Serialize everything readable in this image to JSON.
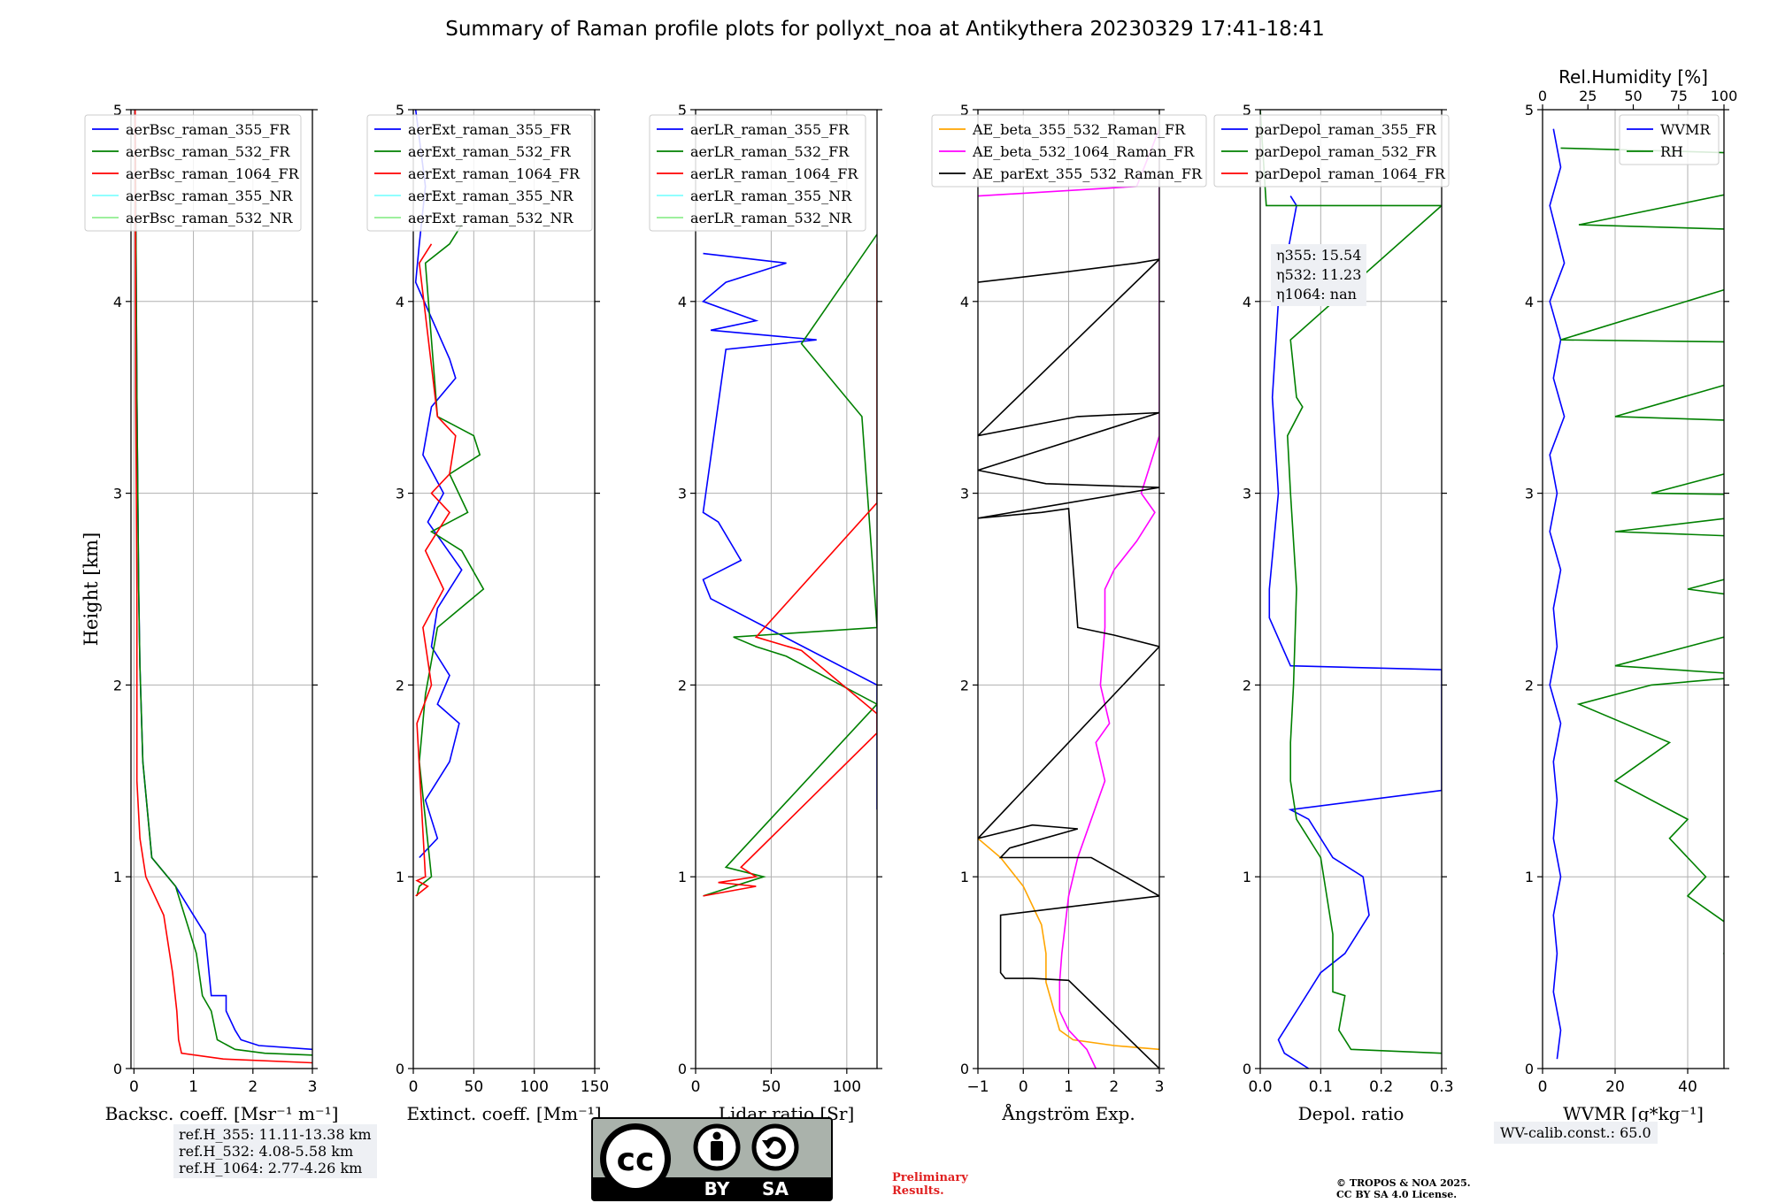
{
  "title": "Summary of Raman profile plots for pollyxt_noa at Antikythera 20230329 17:41-18:41",
  "ylabel": "Height [km]",
  "ref_heights": [
    "ref.H_355: 11.11-13.38 km",
    "ref.H_532: 4.08-5.58 km",
    "ref.H_1064: 2.77-4.26 km"
  ],
  "eta_values": [
    "η355: 15.54",
    "η532: 11.23",
    "η1064: nan"
  ],
  "wv_calib": "WV-calib.const.: 65.0",
  "license": {
    "cc": "cc",
    "by": "BY",
    "sa": "SA"
  },
  "preliminary": [
    "Preliminary",
    "Results."
  ],
  "copyright": [
    "© TROPOS & NOA 2025.",
    "CC BY SA 4.0 License."
  ],
  "colors": {
    "blue": "#0000ff",
    "green": "#008000",
    "red": "#ff0000",
    "cyan": "#80ffff",
    "lightgreen": "#90ee90",
    "orange": "#ffa500",
    "magenta": "#ff00ff",
    "black": "#000000"
  },
  "chart_data": [
    {
      "type": "line",
      "xlabel": "Backsc. coeff. [Msr⁻¹ m⁻¹]",
      "ylabel": "Height [km]",
      "xlim": [
        -0.05,
        3
      ],
      "ylim": [
        0,
        5
      ],
      "xticks": [
        "0",
        "1",
        "2",
        "3"
      ],
      "yticks": [
        "0",
        "1",
        "2",
        "3",
        "4",
        "5"
      ],
      "legend": "top-left",
      "series": [
        {
          "name": "aerBsc_raman_355_FR",
          "color": "#0000ff",
          "x": [
            0.02,
            0.03,
            0.05,
            0.08,
            0.1,
            0.15,
            0.3,
            0.7,
            1.2,
            1.3,
            1.55,
            1.55,
            1.7,
            1.8,
            2.1,
            3.0
          ],
          "y": [
            5,
            4.5,
            3.5,
            2.5,
            2.1,
            1.6,
            1.1,
            0.95,
            0.7,
            0.38,
            0.38,
            0.3,
            0.2,
            0.15,
            0.12,
            0.1
          ]
        },
        {
          "name": "aerBsc_raman_532_FR",
          "color": "#008000",
          "x": [
            0.02,
            0.03,
            0.05,
            0.08,
            0.1,
            0.15,
            0.3,
            0.7,
            1.05,
            1.15,
            1.3,
            1.4,
            1.7,
            2.2,
            3.0
          ],
          "y": [
            5,
            4.5,
            3.5,
            2.5,
            2.1,
            1.6,
            1.1,
            0.95,
            0.6,
            0.38,
            0.3,
            0.15,
            0.1,
            0.08,
            0.07
          ]
        },
        {
          "name": "aerBsc_raman_1064_FR",
          "color": "#ff0000",
          "x": [
            0.02,
            0.03,
            0.05,
            0.05,
            0.1,
            0.2,
            0.5,
            0.65,
            0.72,
            0.75,
            0.8,
            1.5,
            3.0
          ],
          "y": [
            5,
            3.5,
            2.5,
            1.5,
            1.2,
            1.0,
            0.8,
            0.5,
            0.3,
            0.15,
            0.08,
            0.05,
            0.03
          ]
        },
        {
          "name": "aerBsc_raman_355_NR",
          "color": "#80ffff",
          "x": [],
          "y": []
        },
        {
          "name": "aerBsc_raman_532_NR",
          "color": "#90ee90",
          "x": [],
          "y": []
        }
      ]
    },
    {
      "type": "line",
      "xlabel": "Extinct. coeff. [Mm⁻¹]",
      "xlim": [
        0,
        150
      ],
      "ylim": [
        0,
        5
      ],
      "xticks": [
        "0",
        "50",
        "100",
        "150"
      ],
      "yticks": [
        "0",
        "1",
        "2",
        "3",
        "4",
        "5"
      ],
      "legend": "top-left",
      "series": [
        {
          "name": "aerExt_raman_355_FR",
          "color": "#0000ff",
          "x": [
            2,
            10,
            5,
            2,
            30,
            35,
            15,
            8,
            25,
            12,
            40,
            20,
            15,
            30,
            20,
            38,
            30,
            10,
            20,
            5
          ],
          "y": [
            5,
            4.6,
            4.3,
            4.1,
            3.7,
            3.6,
            3.45,
            3.2,
            3.0,
            2.85,
            2.6,
            2.4,
            2.2,
            2.05,
            1.9,
            1.8,
            1.6,
            1.4,
            1.2,
            1.1
          ]
        },
        {
          "name": "aerExt_raman_532_FR",
          "color": "#008000",
          "x": [
            40,
            30,
            10,
            20,
            50,
            55,
            30,
            45,
            15,
            40,
            58,
            20,
            10,
            5,
            15,
            5,
            3
          ],
          "y": [
            4.4,
            4.3,
            4.2,
            3.4,
            3.3,
            3.2,
            3.1,
            2.9,
            2.8,
            2.7,
            2.5,
            2.3,
            1.95,
            1.6,
            1.0,
            0.95,
            0.9
          ]
        },
        {
          "name": "aerExt_raman_1064_FR",
          "color": "#ff0000",
          "x": [
            15,
            5,
            20,
            35,
            30,
            15,
            30,
            10,
            25,
            8,
            15,
            3,
            10,
            3,
            12,
            2
          ],
          "y": [
            4.3,
            4.2,
            3.4,
            3.3,
            3.1,
            3.0,
            2.9,
            2.7,
            2.5,
            2.3,
            2.0,
            1.8,
            1.0,
            0.98,
            0.95,
            0.9
          ]
        },
        {
          "name": "aerExt_raman_355_NR",
          "color": "#80ffff",
          "x": [],
          "y": []
        },
        {
          "name": "aerExt_raman_532_NR",
          "color": "#90ee90",
          "x": [],
          "y": []
        }
      ]
    },
    {
      "type": "line",
      "xlabel": "Lidar ratio [Sr]",
      "xlim": [
        0,
        120
      ],
      "ylim": [
        0,
        5
      ],
      "xticks": [
        "0",
        "50",
        "100"
      ],
      "yticks": [
        "0",
        "1",
        "2",
        "3",
        "4",
        "5"
      ],
      "legend": "top-left",
      "series": [
        {
          "name": "aerLR_raman_355_FR",
          "color": "#0000ff",
          "x": [
            5,
            60,
            20,
            5,
            40,
            10,
            80,
            20,
            5,
            15,
            30,
            5,
            10,
            120,
            120,
            120,
            120
          ],
          "y": [
            4.25,
            4.2,
            4.1,
            4.0,
            3.9,
            3.85,
            3.8,
            3.75,
            2.9,
            2.85,
            2.65,
            2.55,
            2.45,
            2.0,
            1.65,
            1.43,
            1.35
          ]
        },
        {
          "name": "aerLR_raman_532_FR",
          "color": "#008000",
          "x": [
            120,
            70,
            110,
            120,
            25,
            40,
            60,
            120,
            20,
            45,
            5
          ],
          "y": [
            4.35,
            3.78,
            3.4,
            2.3,
            2.25,
            2.2,
            2.15,
            1.9,
            1.05,
            1.0,
            0.9
          ]
        },
        {
          "name": "aerLR_raman_1064_FR",
          "color": "#ff0000",
          "x": [
            120,
            120,
            120,
            120,
            120,
            120,
            40,
            70,
            120,
            120,
            30,
            40,
            15,
            40,
            5
          ],
          "y": [
            4.3,
            4.2,
            3.78,
            3.43,
            3.07,
            2.95,
            2.25,
            2.18,
            1.85,
            1.75,
            1.05,
            1.0,
            0.97,
            0.95,
            0.9
          ]
        },
        {
          "name": "aerLR_raman_355_NR",
          "color": "#80ffff",
          "x": [],
          "y": []
        },
        {
          "name": "aerLR_raman_532_NR",
          "color": "#90ee90",
          "x": [],
          "y": []
        }
      ]
    },
    {
      "type": "line",
      "xlabel": "Ångström Exp.",
      "xlim": [
        -1,
        3
      ],
      "ylim": [
        0,
        5
      ],
      "xticks": [
        "−1",
        "0",
        "1",
        "2",
        "3"
      ],
      "yticks": [
        "0",
        "1",
        "2",
        "3",
        "4",
        "5"
      ],
      "legend": "top-left",
      "series": [
        {
          "name": "AE_beta_355_532_Raman_FR",
          "color": "#ffa500",
          "x": [
            -1.0,
            -0.5,
            0.0,
            0.4,
            0.5,
            0.5,
            0.8,
            1.1,
            2.0,
            3.0
          ],
          "y": [
            1.2,
            1.1,
            0.95,
            0.75,
            0.6,
            0.45,
            0.2,
            0.15,
            0.12,
            0.1
          ]
        },
        {
          "name": "AE_beta_532_1064_Raman_FR",
          "color": "#ff00ff",
          "x": [
            -1.0,
            2.5,
            3.0,
            3.0,
            2.6,
            2.9,
            2.5,
            2.0,
            1.8,
            1.8,
            1.7,
            1.9,
            1.6,
            1.8,
            1.5,
            1.2,
            1.0,
            0.85,
            0.8,
            0.8,
            1.0,
            1.4,
            1.6
          ],
          "y": [
            4.55,
            4.6,
            4.9,
            3.3,
            3.0,
            2.9,
            2.75,
            2.6,
            2.5,
            2.3,
            2.0,
            1.8,
            1.7,
            1.5,
            1.3,
            1.1,
            0.9,
            0.6,
            0.45,
            0.3,
            0.2,
            0.1,
            0.0
          ]
        },
        {
          "name": "AE_parExt_355_532_Raman_FR",
          "color": "#000000",
          "x": [
            -1.0,
            0.8,
            2.5,
            3.0,
            -1.0,
            1.2,
            3.0,
            -1.0,
            0.5,
            3.0,
            -1.0,
            0.4,
            1.0,
            1.2,
            2.0,
            3.0,
            -1.0,
            0.2,
            1.2,
            -0.3,
            -0.5,
            1.5,
            3.0,
            -0.5,
            -0.5,
            -0.5,
            -0.4,
            0.2,
            1.0,
            3.0
          ],
          "y": [
            4.1,
            4.15,
            4.2,
            4.22,
            3.3,
            3.4,
            3.42,
            3.12,
            3.05,
            3.03,
            2.87,
            2.9,
            2.92,
            2.3,
            2.26,
            2.2,
            1.2,
            1.27,
            1.25,
            1.15,
            1.1,
            1.1,
            0.9,
            0.8,
            0.65,
            0.5,
            0.47,
            0.47,
            0.46,
            0.0
          ]
        }
      ]
    },
    {
      "type": "line",
      "xlabel": "Depol. ratio",
      "xlim": [
        0,
        0.3
      ],
      "ylim": [
        0,
        5
      ],
      "xticks": [
        "0.0",
        "0.1",
        "0.2",
        "0.3"
      ],
      "yticks": [
        "0",
        "1",
        "2",
        "3",
        "4",
        "5"
      ],
      "legend": "top-left",
      "annotation_position": "upper-middle",
      "series": [
        {
          "name": "parDepol_raman_355_FR",
          "color": "#0000ff",
          "x": [
            0.05,
            0.06,
            0.03,
            0.02,
            0.03,
            0.015,
            0.015,
            0.05,
            0.3,
            0.3,
            0.3,
            0.3,
            0.3,
            0.05,
            0.08,
            0.12,
            0.17,
            0.18,
            0.14,
            0.1,
            0.06,
            0.03,
            0.04,
            0.06,
            0.08
          ],
          "y": [
            4.55,
            4.5,
            4.0,
            3.5,
            3.0,
            2.5,
            2.35,
            2.1,
            2.08,
            1.9,
            1.65,
            1.55,
            1.45,
            1.35,
            1.3,
            1.1,
            1.0,
            0.8,
            0.6,
            0.5,
            0.3,
            0.15,
            0.08,
            0.04,
            0.0
          ]
        },
        {
          "name": "parDepol_raman_532_FR",
          "color": "#008000",
          "x": [
            0.0,
            0.01,
            0.3,
            0.05,
            0.06,
            0.07,
            0.045,
            0.05,
            0.06,
            0.055,
            0.05,
            0.05,
            0.06,
            0.1,
            0.12,
            0.12,
            0.14,
            0.13,
            0.15,
            0.3
          ],
          "y": [
            5,
            4.5,
            4.5,
            3.8,
            3.5,
            3.45,
            3.3,
            3.0,
            2.5,
            2.0,
            1.7,
            1.5,
            1.3,
            1.1,
            0.7,
            0.4,
            0.38,
            0.2,
            0.1,
            0.08
          ]
        },
        {
          "name": "parDepol_raman_1064_FR",
          "color": "#ff0000",
          "x": [],
          "y": []
        }
      ]
    },
    {
      "type": "line",
      "xlabel": "WVMR [g*kg⁻¹]",
      "x2label": "Rel.Humidity [%]",
      "xlim": [
        0,
        50
      ],
      "x2lim": [
        0,
        100
      ],
      "ylim": [
        0,
        5
      ],
      "xticks": [
        "0",
        "20",
        "40"
      ],
      "x2ticks": [
        "0",
        "25",
        "50",
        "75",
        "100"
      ],
      "yticks": [
        "0",
        "1",
        "2",
        "3",
        "4",
        "5"
      ],
      "legend": "top-right",
      "series": [
        {
          "name": "WVMR",
          "color": "#0000ff",
          "x": [
            3,
            5,
            2,
            6,
            2,
            5,
            3,
            6,
            2,
            4,
            2,
            5,
            3,
            4,
            2,
            5,
            3,
            4,
            3,
            5,
            3,
            4,
            3,
            5,
            4
          ],
          "y": [
            4.9,
            4.7,
            4.5,
            4.2,
            4.0,
            3.8,
            3.6,
            3.4,
            3.2,
            3.0,
            2.8,
            2.6,
            2.4,
            2.2,
            2.0,
            1.8,
            1.6,
            1.4,
            1.2,
            1.0,
            0.8,
            0.6,
            0.4,
            0.2,
            0.05
          ]
        },
        {
          "name": "RH",
          "color": "#008000",
          "x": [
            5,
            100,
            10,
            100,
            5,
            90,
            20,
            100,
            30,
            100,
            20,
            90,
            40,
            80,
            20,
            60,
            30,
            10,
            35,
            20,
            40,
            35,
            45,
            40,
            55,
            50,
            65,
            60,
            70,
            55,
            60,
            50
          ],
          "y": [
            4.8,
            4.75,
            4.4,
            4.35,
            3.8,
            3.78,
            3.4,
            3.35,
            3.0,
            2.98,
            2.8,
            2.75,
            2.5,
            2.4,
            2.1,
            2.05,
            2.0,
            1.9,
            1.7,
            1.5,
            1.3,
            1.2,
            1.0,
            0.9,
            0.7,
            0.6,
            0.45,
            0.35,
            0.3,
            0.2,
            0.1,
            0.05
          ]
        }
      ]
    }
  ]
}
